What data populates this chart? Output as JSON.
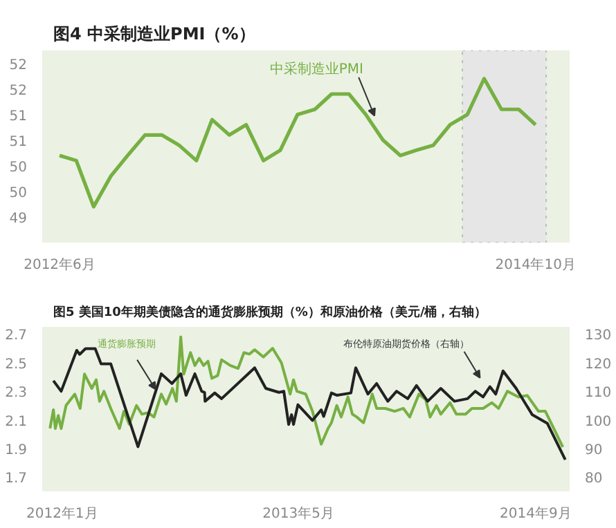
{
  "chart_data": [
    {
      "type": "line",
      "title": "图4 中采制造业PMI（%）",
      "x": [
        "2012-06",
        "2012-07",
        "2012-08",
        "2012-09",
        "2012-10",
        "2012-11",
        "2012-12",
        "2013-01",
        "2013-02",
        "2013-03",
        "2013-04",
        "2013-05",
        "2013-06",
        "2013-07",
        "2013-08",
        "2013-09",
        "2013-10",
        "2013-11",
        "2013-12",
        "2014-01",
        "2014-02",
        "2014-03",
        "2014-04",
        "2014-05",
        "2014-06",
        "2014-07",
        "2014-08",
        "2014-09",
        "2014-10"
      ],
      "series": [
        {
          "name": "中采制造业PMI",
          "color": "#76b043",
          "values": [
            50.2,
            50.1,
            49.2,
            49.8,
            50.2,
            50.6,
            50.6,
            50.4,
            50.1,
            50.9,
            50.6,
            50.8,
            50.1,
            50.3,
            51.0,
            51.1,
            51.4,
            51.4,
            51.0,
            50.5,
            50.2,
            50.3,
            50.4,
            50.8,
            51.0,
            51.7,
            51.1,
            51.1,
            50.8
          ]
        }
      ],
      "xlim": [
        "2012-05-01",
        "2014-12-01"
      ],
      "xticks": [
        {
          "value": "2012-06",
          "label": "2012年6月"
        },
        {
          "value": "2014-10",
          "label": "2014年10月"
        }
      ],
      "ylim": [
        48.5,
        52.25
      ],
      "yticks": [
        {
          "value": 49,
          "label": "49"
        },
        {
          "value": 49.5,
          "label": "50"
        },
        {
          "value": 50,
          "label": "50"
        },
        {
          "value": 50.5,
          "label": "51"
        },
        {
          "value": 51,
          "label": "51"
        },
        {
          "value": 51.5,
          "label": "52"
        },
        {
          "value": 52,
          "label": "52"
        }
      ],
      "bands": [
        {
          "axis": "x",
          "from": "2014-05-23",
          "to": "2014-10-20",
          "color": "#e6e6e6"
        }
      ],
      "grid": false,
      "marker": "none",
      "line_style": "solid"
    },
    {
      "type": "line",
      "title": "图5 美国10年期美债隐含的通货膨胀预期（%）和原油价格（美元/桶，右轴）",
      "series": [
        {
          "name": "通货膨胀预期",
          "color": "#76b043",
          "x": [
            "2011-12-07",
            "2011-12-14",
            "2011-12-18",
            "2011-12-24",
            "2011-12-30",
            "2012-01-09",
            "2012-01-27",
            "2012-02-07",
            "2012-02-16",
            "2012-03-02",
            "2012-03-11",
            "2012-03-18",
            "2012-03-27",
            "2012-04-10",
            "2012-04-28",
            "2012-05-07",
            "2012-05-18",
            "2012-06-02",
            "2012-06-13",
            "2012-06-26",
            "2012-07-08",
            "2012-07-23",
            "2012-08-02",
            "2012-08-15",
            "2012-08-23",
            "2012-09-01",
            "2012-09-07",
            "2012-09-21",
            "2012-09-30",
            "2012-10-09",
            "2012-10-18",
            "2012-10-27",
            "2012-11-04",
            "2012-11-16",
            "2012-11-24",
            "2012-12-12",
            "2012-12-28",
            "2013-01-09",
            "2013-01-20",
            "2013-01-31",
            "2013-02-18",
            "2013-03-09",
            "2013-03-27",
            "2013-04-14",
            "2013-04-21",
            "2013-04-28",
            "2013-05-16",
            "2013-05-30",
            "2013-06-17",
            "2013-07-01",
            "2013-07-08",
            "2013-07-19",
            "2013-07-28",
            "2013-08-11",
            "2013-08-20",
            "2013-08-29",
            "2013-09-12",
            "2013-09-30",
            "2013-10-09",
            "2013-10-27",
            "2013-11-15",
            "2013-12-03",
            "2013-12-16",
            "2014-01-04",
            "2014-01-18",
            "2014-01-27",
            "2014-02-09",
            "2014-02-18",
            "2014-03-09",
            "2014-03-22",
            "2014-04-10",
            "2014-04-23",
            "2014-05-16",
            "2014-06-03",
            "2014-06-17",
            "2014-07-05",
            "2014-07-28",
            "2014-08-15",
            "2014-09-07",
            "2014-09-21",
            "2014-10-04",
            "2014-10-27"
          ],
          "values": [
            2.04,
            2.17,
            2.04,
            2.13,
            2.04,
            2.2,
            2.28,
            2.18,
            2.42,
            2.32,
            2.38,
            2.23,
            2.3,
            2.18,
            2.04,
            2.16,
            2.07,
            2.2,
            2.14,
            2.15,
            2.12,
            2.28,
            2.21,
            2.32,
            2.23,
            2.68,
            2.42,
            2.57,
            2.48,
            2.53,
            2.48,
            2.51,
            2.39,
            2.41,
            2.52,
            2.48,
            2.46,
            2.57,
            2.56,
            2.59,
            2.54,
            2.6,
            2.5,
            2.28,
            2.38,
            2.3,
            2.28,
            2.16,
            1.93,
            2.04,
            2.08,
            2.2,
            2.12,
            2.26,
            2.14,
            2.12,
            2.08,
            2.28,
            2.18,
            2.18,
            2.16,
            2.18,
            2.12,
            2.28,
            2.24,
            2.12,
            2.2,
            2.14,
            2.22,
            2.14,
            2.14,
            2.18,
            2.18,
            2.22,
            2.18,
            2.3,
            2.26,
            2.27,
            2.16,
            2.16,
            2.07,
            1.91
          ]
        },
        {
          "name": "布伦特原油期货价格（右轴）",
          "color": "#222222",
          "axis": "y2",
          "x": [
            "2011-12-14",
            "2011-12-30",
            "2012-01-31",
            "2012-02-06",
            "2012-02-18",
            "2012-03-09",
            "2012-03-21",
            "2012-04-10",
            "2012-06-05",
            "2012-07-23",
            "2012-08-14",
            "2012-09-01",
            "2012-09-12",
            "2012-09-30",
            "2012-10-14",
            "2012-10-20",
            "2012-10-21",
            "2012-11-10",
            "2012-11-24",
            "2013-01-31",
            "2013-02-23",
            "2013-03-22",
            "2013-04-01",
            "2013-04-11",
            "2013-04-17",
            "2013-04-21",
            "2013-04-30",
            "2013-05-30",
            "2013-06-17",
            "2013-06-22",
            "2013-07-08",
            "2013-07-19",
            "2013-08-17",
            "2013-08-27",
            "2013-09-21",
            "2013-10-09",
            "2013-11-01",
            "2013-11-19",
            "2013-12-12",
            "2013-12-30",
            "2014-01-22",
            "2014-02-18",
            "2014-03-18",
            "2014-04-14",
            "2014-04-30",
            "2014-05-16",
            "2014-05-30",
            "2014-06-11",
            "2014-06-26",
            "2014-07-23",
            "2014-08-25",
            "2014-09-25",
            "2014-11-01"
          ],
          "values": [
            113.7,
            110.0,
            124.3,
            122.9,
            124.9,
            124.9,
            119.6,
            119.6,
            90.6,
            116.1,
            112.7,
            116.1,
            108.6,
            116.1,
            110.0,
            109.6,
            106.5,
            109.4,
            107.4,
            118.2,
            111.0,
            109.6,
            110.0,
            98.4,
            101.8,
            98.4,
            105.3,
            99.8,
            103.5,
            101.2,
            109.4,
            108.6,
            109.4,
            118.2,
            109.0,
            112.7,
            106.5,
            110.0,
            107.4,
            112.0,
            106.5,
            111.0,
            106.5,
            107.4,
            110.0,
            108.0,
            111.6,
            109.0,
            117.1,
            111.0,
            101.8,
            98.8,
            86.1
          ]
        }
      ],
      "xlim": [
        "2011-11-21",
        "2014-11-10"
      ],
      "xticks": [
        {
          "value": "2012-01",
          "label": "2012年1月"
        },
        {
          "value": "2013-05",
          "label": "2013年5月"
        },
        {
          "value": "2014-09",
          "label": "2014年9月"
        }
      ],
      "ylim": [
        1.6,
        2.75
      ],
      "yticks": [
        1.7,
        1.9,
        2.1,
        2.3,
        2.5,
        2.7
      ],
      "y2lim": [
        75,
        132.5
      ],
      "y2ticks": [
        80,
        90,
        100,
        110,
        120,
        130
      ],
      "grid": false,
      "marker": "none",
      "line_style": "solid"
    }
  ]
}
